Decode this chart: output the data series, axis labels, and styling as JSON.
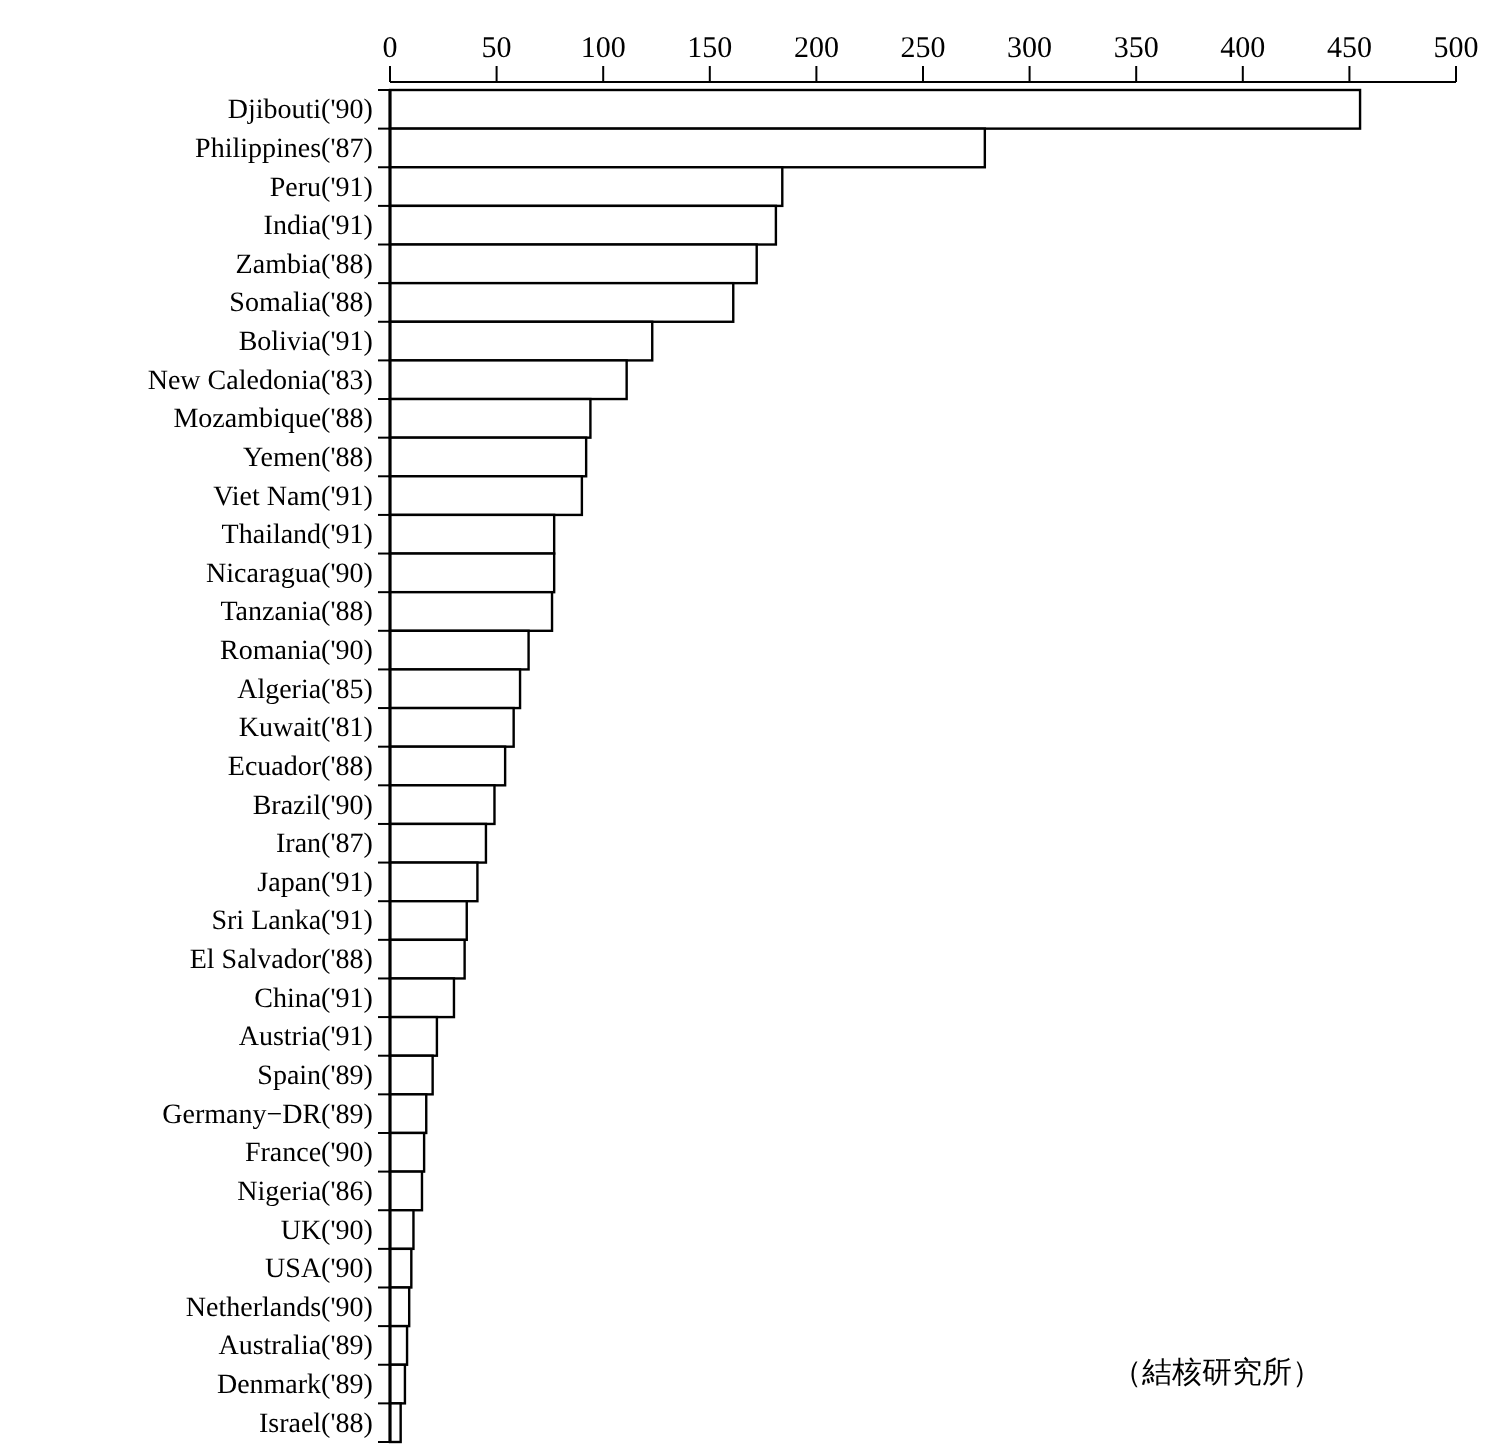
{
  "chart_data": {
    "type": "bar",
    "orientation": "horizontal",
    "categories": [
      "Djibouti('90)",
      "Philippines('87)",
      "Peru('91)",
      "India('91)",
      "Zambia('88)",
      "Somalia('88)",
      "Bolivia('91)",
      "New Caledonia('83)",
      "Mozambique('88)",
      "Yemen('88)",
      "Viet Nam('91)",
      "Thailand('91)",
      "Nicaragua('90)",
      "Tanzania('88)",
      "Romania('90)",
      "Algeria('85)",
      "Kuwait('81)",
      "Ecuador('88)",
      "Brazil('90)",
      "Iran('87)",
      "Japan('91)",
      "Sri Lanka('91)",
      "El Salvador('88)",
      "China('91)",
      "Austria('91)",
      "Spain('89)",
      "Germany−DR('89)",
      "France('90)",
      "Nigeria('86)",
      "UK('90)",
      "USA('90)",
      "Netherlands('90)",
      "Australia('89)",
      "Denmark('89)",
      "Israel('88)"
    ],
    "values": [
      455,
      279,
      184,
      181,
      172,
      161,
      123,
      111,
      94,
      92,
      90,
      77,
      77,
      76,
      65,
      61,
      58,
      54,
      49,
      45,
      41,
      36,
      35,
      30,
      22,
      20,
      17,
      16,
      15,
      11,
      10,
      9,
      8,
      7,
      5
    ],
    "color": "#ffffff",
    "xlim": [
      0,
      500
    ],
    "xticks": [
      0,
      50,
      100,
      150,
      200,
      250,
      300,
      350,
      400,
      450,
      500
    ],
    "grid": false,
    "annotations": [
      "（結核研究所）"
    ]
  }
}
